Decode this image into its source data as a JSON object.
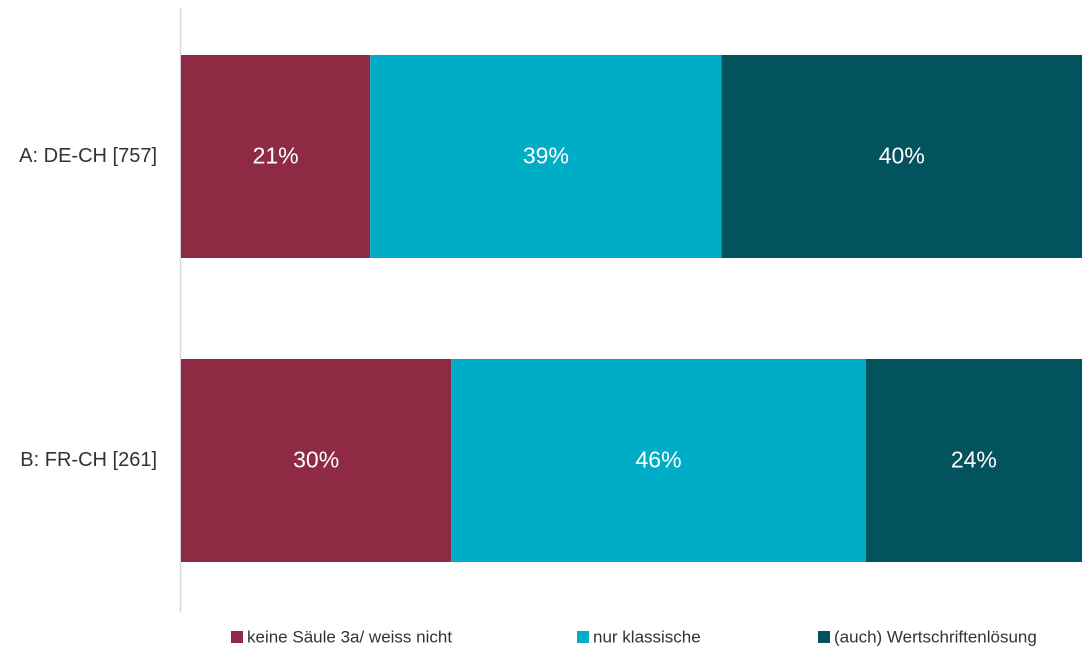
{
  "chart_data": {
    "type": "bar",
    "orientation": "horizontal",
    "stacked": true,
    "normalized_percent": true,
    "categories": [
      "A: DE-CH [757]",
      "B: FR-CH [261]"
    ],
    "series": [
      {
        "name": "keine Säule 3a/ weiss nicht",
        "values": [
          21,
          30
        ],
        "labels": [
          "21%",
          "30%"
        ],
        "color": "#8f2a45"
      },
      {
        "name": "nur klassische",
        "values": [
          39,
          46
        ],
        "labels": [
          "39%",
          "46%"
        ],
        "color": "#00adc6"
      },
      {
        "name": "(auch) Wertschriftenlösung",
        "values": [
          40,
          24
        ],
        "labels": [
          "40%",
          "24%"
        ],
        "color": "#03535e"
      }
    ],
    "xlim": [
      0,
      100
    ],
    "grid": false,
    "legend": "bottom",
    "axis_color": "#d9d9d9"
  }
}
